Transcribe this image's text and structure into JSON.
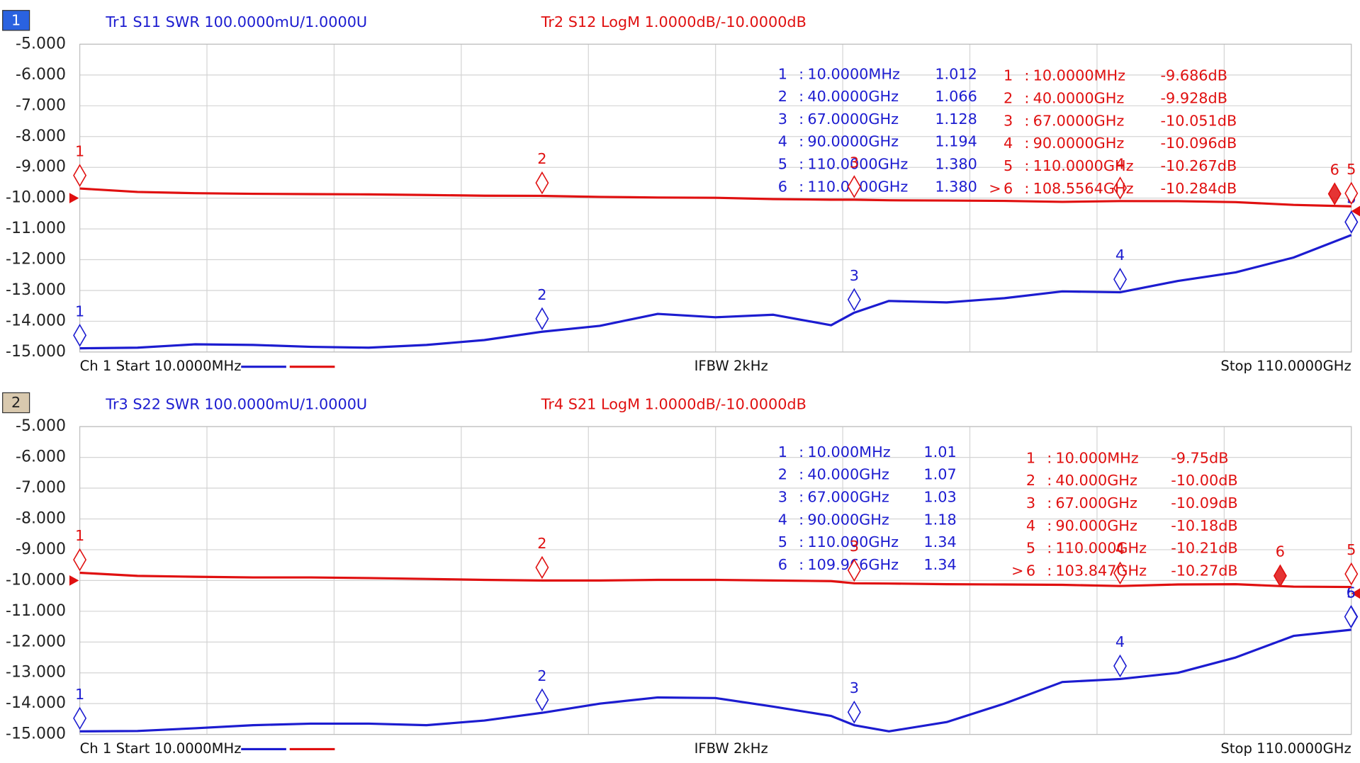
{
  "chart_data": [
    {
      "type": "line",
      "window": "1",
      "xlim": [
        0.01,
        110
      ],
      "ylim": [
        -15,
        -5
      ],
      "y2lim": [
        1.0,
        2.0
      ],
      "yticks": [
        {
          "value": -5,
          "label": "-5.000"
        },
        {
          "value": -6,
          "label": "-6.000"
        },
        {
          "value": -7,
          "label": "-7.000"
        },
        {
          "value": -8,
          "label": "-8.000"
        },
        {
          "value": -9,
          "label": "-9.000"
        },
        {
          "value": -10,
          "label": "-10.000"
        },
        {
          "value": -11,
          "label": "-11.000"
        },
        {
          "value": -12,
          "label": "-12.000"
        },
        {
          "value": -13,
          "label": "-13.000"
        },
        {
          "value": -14,
          "label": "-14.000"
        },
        {
          "value": -15,
          "label": "-15.000"
        }
      ],
      "grid": true,
      "footer": {
        "start": "Ch 1 Start 10.0000MHz",
        "center": "IFBW 2kHz",
        "stop": "Stop 110.0000GHz"
      },
      "x": [
        0.01,
        5,
        10,
        15,
        20,
        25,
        30,
        35,
        40,
        45,
        50,
        55,
        60,
        65,
        67,
        70,
        75,
        80,
        85,
        90,
        95,
        100,
        105,
        110
      ],
      "series": [
        {
          "name": "Tr1 S11 SWR 100.0000mU/1.0000U",
          "color": "#1c1cd0",
          "axis": "y2",
          "values": [
            1.012,
            1.014,
            1.025,
            1.023,
            1.017,
            1.014,
            1.023,
            1.039,
            1.066,
            1.085,
            1.124,
            1.113,
            1.121,
            1.087,
            1.128,
            1.166,
            1.161,
            1.175,
            1.197,
            1.194,
            1.231,
            1.259,
            1.307,
            1.38
          ],
          "markers": [
            {
              "id": "1",
              "x": 0.01,
              "x_label": "10.0000MHz",
              "y": 1.012,
              "value_label": "1.012"
            },
            {
              "id": "2",
              "x": 40,
              "x_label": "40.0000GHz",
              "y": 1.066,
              "value_label": "1.066"
            },
            {
              "id": "3",
              "x": 67,
              "x_label": "67.0000GHz",
              "y": 1.128,
              "value_label": "1.128"
            },
            {
              "id": "4",
              "x": 90,
              "x_label": "90.0000GHz",
              "y": 1.194,
              "value_label": "1.194"
            },
            {
              "id": "5",
              "x": 110,
              "x_label": "110.0000GHz",
              "y": 1.38,
              "value_label": "1.380"
            },
            {
              "id": "6",
              "x": 110,
              "x_label": "110.0000GHz",
              "y": 1.38,
              "value_label": "1.380"
            }
          ]
        },
        {
          "name": "Tr2 S12 LogM 1.0000dB/-10.0000dB",
          "color": "#e01010",
          "values": [
            -9.686,
            -9.8,
            -9.84,
            -9.86,
            -9.87,
            -9.88,
            -9.9,
            -9.92,
            -9.928,
            -9.96,
            -9.98,
            -9.99,
            -10.03,
            -10.05,
            -10.051,
            -10.07,
            -10.08,
            -10.09,
            -10.12,
            -10.096,
            -10.1,
            -10.13,
            -10.22,
            -10.267
          ],
          "markers": [
            {
              "id": "1",
              "x": 0.01,
              "x_label": "10.0000MHz",
              "y": -9.686,
              "value_label": "-9.686dB"
            },
            {
              "id": "2",
              "x": 40,
              "x_label": "40.0000GHz",
              "y": -9.928,
              "value_label": "-9.928dB"
            },
            {
              "id": "3",
              "x": 67,
              "x_label": "67.0000GHz",
              "y": -10.051,
              "value_label": "-10.051dB"
            },
            {
              "id": "4",
              "x": 90,
              "x_label": "90.0000GHz",
              "y": -10.096,
              "value_label": "-10.096dB"
            },
            {
              "id": "5",
              "x": 110,
              "x_label": "110.0000GHz",
              "y": -10.267,
              "value_label": "-10.267dB"
            },
            {
              "id": "6",
              "prefix": ">",
              "x": 108.5564,
              "x_label": "108.5564GHz",
              "y": -10.284,
              "value_label": "-10.284dB"
            }
          ]
        }
      ]
    },
    {
      "type": "line",
      "window": "2",
      "xlim": [
        0.01,
        110
      ],
      "ylim": [
        -15,
        -5
      ],
      "y2lim": [
        1.0,
        2.0
      ],
      "yticks": [
        {
          "value": -5,
          "label": "-5.000"
        },
        {
          "value": -6,
          "label": "-6.000"
        },
        {
          "value": -7,
          "label": "-7.000"
        },
        {
          "value": -8,
          "label": "-8.000"
        },
        {
          "value": -9,
          "label": "-9.000"
        },
        {
          "value": -10,
          "label": "-10.000"
        },
        {
          "value": -11,
          "label": "-11.000"
        },
        {
          "value": -12,
          "label": "-12.000"
        },
        {
          "value": -13,
          "label": "-13.000"
        },
        {
          "value": -14,
          "label": "-14.000"
        },
        {
          "value": -15,
          "label": "-15.000"
        }
      ],
      "grid": true,
      "footer": {
        "start": "Ch 1 Start 10.0000MHz",
        "center": "IFBW 2kHz",
        "stop": "Stop 110.0000GHz"
      },
      "x": [
        0.01,
        5,
        10,
        15,
        20,
        25,
        30,
        35,
        40,
        45,
        50,
        55,
        60,
        65,
        67,
        70,
        75,
        80,
        85,
        90,
        95,
        100,
        105,
        110
      ],
      "series": [
        {
          "name": "Tr3 S22 SWR 100.0000mU/1.0000U",
          "color": "#1c1cd0",
          "axis": "y2",
          "values": [
            1.01,
            1.011,
            1.02,
            1.03,
            1.035,
            1.035,
            1.03,
            1.045,
            1.07,
            1.1,
            1.12,
            1.118,
            1.09,
            1.06,
            1.03,
            1.01,
            1.04,
            1.1,
            1.17,
            1.18,
            1.2,
            1.25,
            1.32,
            1.34
          ],
          "markers": [
            {
              "id": "1",
              "x": 0.01,
              "x_label": "10.000MHz",
              "y": 1.01,
              "value_label": "1.01"
            },
            {
              "id": "2",
              "x": 40,
              "x_label": "40.000GHz",
              "y": 1.07,
              "value_label": "1.07"
            },
            {
              "id": "3",
              "x": 67,
              "x_label": "67.000GHz",
              "y": 1.03,
              "value_label": "1.03"
            },
            {
              "id": "4",
              "x": 90,
              "x_label": "90.000GHz",
              "y": 1.18,
              "value_label": "1.18"
            },
            {
              "id": "5",
              "x": 110,
              "x_label": "110.000GHz",
              "y": 1.34,
              "value_label": "1.34"
            },
            {
              "id": "6",
              "x": 109.966,
              "x_label": "109.966GHz",
              "y": 1.34,
              "value_label": "1.34"
            }
          ]
        },
        {
          "name": "Tr4 S21 LogM 1.0000dB/-10.0000dB",
          "color": "#e01010",
          "values": [
            -9.75,
            -9.85,
            -9.88,
            -9.9,
            -9.9,
            -9.92,
            -9.95,
            -9.98,
            -10.0,
            -10.0,
            -9.98,
            -9.98,
            -10.0,
            -10.02,
            -10.09,
            -10.1,
            -10.12,
            -10.13,
            -10.14,
            -10.18,
            -10.13,
            -10.12,
            -10.2,
            -10.21
          ],
          "markers": [
            {
              "id": "1",
              "x": 0.01,
              "x_label": "10.000MHz",
              "y": -9.75,
              "value_label": "-9.75dB"
            },
            {
              "id": "2",
              "x": 40,
              "x_label": "40.000GHz",
              "y": -10.0,
              "value_label": "-10.00dB"
            },
            {
              "id": "3",
              "x": 67,
              "x_label": "67.000GHz",
              "y": -10.09,
              "value_label": "-10.09dB"
            },
            {
              "id": "4",
              "x": 90,
              "x_label": "90.000GHz",
              "y": -10.18,
              "value_label": "-10.18dB"
            },
            {
              "id": "5",
              "x": 110,
              "x_label": "110.000GHz",
              "y": -10.21,
              "value_label": "-10.21dB"
            },
            {
              "id": "6",
              "prefix": ">",
              "x": 103.847,
              "x_label": "103.847GHz",
              "y": -10.27,
              "value_label": "-10.27dB"
            }
          ]
        }
      ]
    }
  ]
}
